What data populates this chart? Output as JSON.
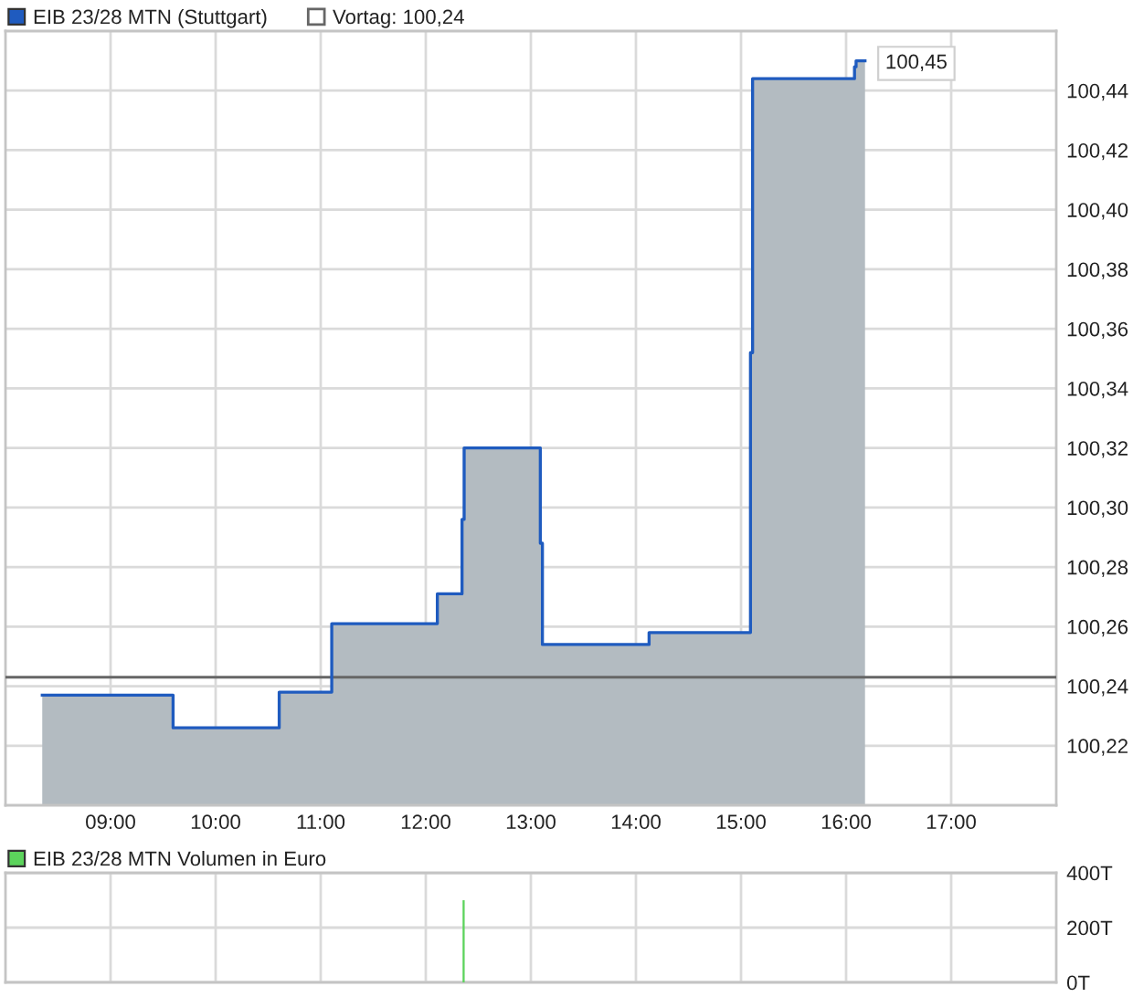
{
  "chart_data": [
    {
      "type": "area",
      "series": [
        {
          "name": "EIB 23/28 MTN (Stuttgart)",
          "color": "#1f5bbf",
          "x": [
            8.35,
            9.595,
            9.595,
            10.605,
            10.605,
            11.105,
            11.105,
            12.11,
            12.11,
            12.345,
            12.345,
            12.365,
            12.365,
            13.09,
            13.09,
            13.11,
            13.11,
            14.125,
            14.125,
            15.09,
            15.09,
            15.11,
            15.11,
            16.08,
            16.08,
            16.095,
            16.095,
            16.18
          ],
          "values": [
            100.237,
            100.237,
            100.226,
            100.226,
            100.238,
            100.238,
            100.261,
            100.261,
            100.271,
            100.271,
            100.296,
            100.296,
            100.32,
            100.32,
            100.288,
            100.288,
            100.254,
            100.254,
            100.258,
            100.258,
            100.352,
            100.352,
            100.444,
            100.444,
            100.448,
            100.448,
            100.45,
            100.45
          ],
          "value_labels": [
            null,
            null,
            null,
            null,
            null,
            null,
            null,
            null,
            null,
            null,
            null,
            null,
            null,
            null,
            null,
            null,
            null,
            null,
            null,
            null,
            null,
            null,
            null,
            null,
            null,
            null,
            null,
            "100,45"
          ]
        }
      ],
      "xlim": [
        8,
        18
      ],
      "xticks": [
        {
          "value": 9,
          "label": "09:00"
        },
        {
          "value": 10,
          "label": "10:00"
        },
        {
          "value": 11,
          "label": "11:00"
        },
        {
          "value": 12,
          "label": "12:00"
        },
        {
          "value": 13,
          "label": "13:00"
        },
        {
          "value": 14,
          "label": "14:00"
        },
        {
          "value": 15,
          "label": "15:00"
        },
        {
          "value": 16,
          "label": "16:00"
        },
        {
          "value": 17,
          "label": "17:00"
        }
      ],
      "ylim": [
        100.2,
        100.46
      ],
      "yticks": [
        {
          "value": 100.22,
          "label": "100,22"
        },
        {
          "value": 100.24,
          "label": "100,24"
        },
        {
          "value": 100.26,
          "label": "100,26"
        },
        {
          "value": 100.28,
          "label": "100,28"
        },
        {
          "value": 100.3,
          "label": "100,30"
        },
        {
          "value": 100.32,
          "label": "100,32"
        },
        {
          "value": 100.34,
          "label": "100,34"
        },
        {
          "value": 100.36,
          "label": "100,36"
        },
        {
          "value": 100.38,
          "label": "100,38"
        },
        {
          "value": 100.4,
          "label": "100,40"
        },
        {
          "value": 100.42,
          "label": "100,42"
        },
        {
          "value": 100.44,
          "label": "100,44"
        }
      ],
      "ref_lines": [
        {
          "axis": "y",
          "value": 100.243,
          "label": "Vortag: 100,24",
          "color": "#666666"
        }
      ],
      "grid": true,
      "legend": "top left"
    },
    {
      "type": "bar",
      "series": [
        {
          "name": "EIB 23/28 MTN Volumen in Euro",
          "color": "#5cd35c",
          "x": [
            12.36
          ],
          "values": [
            300
          ]
        }
      ],
      "xlim": [
        8,
        18
      ],
      "xticks": [
        {
          "value": 9,
          "label": null
        },
        {
          "value": 10,
          "label": null
        },
        {
          "value": 11,
          "label": null
        },
        {
          "value": 12,
          "label": null
        },
        {
          "value": 13,
          "label": null
        },
        {
          "value": 14,
          "label": null
        },
        {
          "value": 15,
          "label": null
        },
        {
          "value": 16,
          "label": null
        },
        {
          "value": 17,
          "label": null
        }
      ],
      "ylim": [
        0,
        400
      ],
      "yticks": [
        {
          "value": 0,
          "label": "0T"
        },
        {
          "value": 200,
          "label": "200T"
        },
        {
          "value": 400,
          "label": "400T"
        }
      ],
      "grid": true,
      "legend": "top left",
      "tick_labels": "y"
    }
  ]
}
